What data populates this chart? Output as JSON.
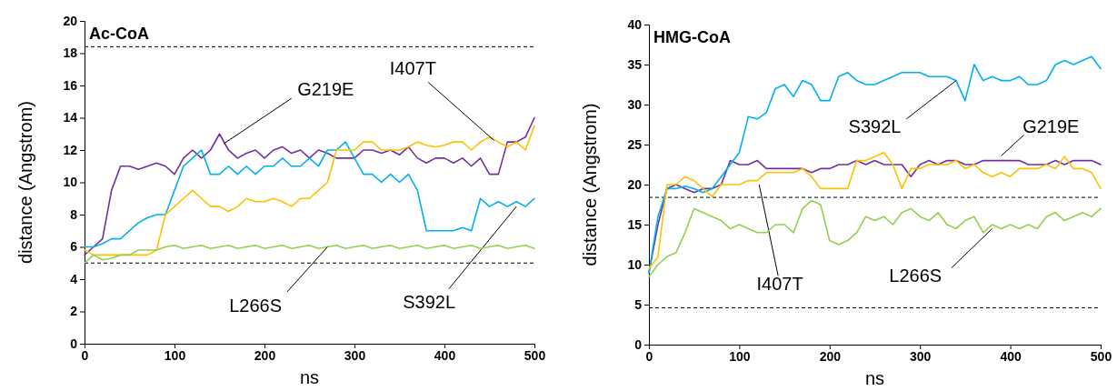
{
  "chart_data": [
    {
      "type": "line",
      "title": "Ac-CoA",
      "xlabel": "ns",
      "ylabel": "distance (Angstrom)",
      "x": [
        0,
        10,
        20,
        30,
        40,
        50,
        60,
        70,
        80,
        90,
        100,
        110,
        120,
        130,
        140,
        150,
        160,
        170,
        180,
        190,
        200,
        210,
        220,
        230,
        240,
        250,
        260,
        270,
        280,
        290,
        300,
        310,
        320,
        330,
        340,
        350,
        360,
        370,
        380,
        390,
        400,
        410,
        420,
        430,
        440,
        450,
        460,
        470,
        480,
        490,
        500
      ],
      "xlim": [
        0,
        500
      ],
      "xticks": [
        0,
        100,
        200,
        300,
        400,
        500
      ],
      "ylim": [
        0,
        20
      ],
      "yticks": [
        0,
        2,
        4,
        6,
        8,
        10,
        12,
        14,
        16,
        18,
        20
      ],
      "grid": false,
      "legend": false,
      "marker": "none",
      "line_style": "solid",
      "ref_lines": [
        {
          "axis": "y",
          "value": 18.4,
          "line_style": "dashed",
          "color": "#000000"
        },
        {
          "axis": "y",
          "value": 5,
          "line_style": "dashed",
          "color": "#000000"
        }
      ],
      "series": [
        {
          "name": "G219E",
          "color": "#7030a0",
          "values": [
            5.5,
            6,
            6.5,
            9.5,
            11,
            11,
            10.8,
            11,
            11.2,
            11,
            10.5,
            11.5,
            12,
            11.5,
            12,
            13,
            12,
            11.5,
            11.8,
            12,
            11.5,
            12,
            12.2,
            11.8,
            12,
            11.5,
            12,
            11.8,
            11.5,
            11.5,
            11.5,
            12,
            12,
            11.8,
            12,
            11.7,
            12.2,
            11.5,
            11.2,
            11.5,
            11.5,
            11.2,
            11.5,
            11,
            11.5,
            10.5,
            10.5,
            12.5,
            12.5,
            12.8,
            14
          ]
        },
        {
          "name": "S392L",
          "color": "#00b0f0",
          "values": [
            6,
            6,
            6.2,
            6.5,
            6.5,
            7,
            7.5,
            7.8,
            8,
            8,
            9.5,
            11,
            11.5,
            12,
            10.5,
            10.5,
            11,
            10.5,
            11,
            10.5,
            11,
            11,
            11.5,
            11,
            11,
            11.5,
            11,
            12,
            12,
            12.5,
            11.5,
            10.5,
            10.5,
            10,
            10.5,
            10,
            10.5,
            9.5,
            7,
            7,
            7,
            7,
            7.2,
            7,
            9,
            8.5,
            8.8,
            8.5,
            8.8,
            8.5,
            9
          ]
        },
        {
          "name": "I407T",
          "color": "#ffc000",
          "values": [
            5.8,
            5.5,
            5.5,
            5.5,
            5.5,
            5.5,
            5.5,
            5.5,
            5.8,
            8,
            8.5,
            9,
            9.5,
            9,
            8.5,
            8.5,
            8.2,
            8.5,
            9,
            8.8,
            8.8,
            9,
            8.8,
            8.5,
            9,
            9,
            9.5,
            10,
            12,
            12,
            12,
            12.5,
            12.5,
            12,
            12,
            12,
            12.2,
            12.5,
            12.3,
            12.2,
            12.3,
            12.5,
            12.5,
            12,
            12.5,
            12.8,
            12.5,
            12.2,
            12.5,
            12,
            13.5
          ]
        },
        {
          "name": "L266S",
          "color": "#92d050",
          "values": [
            5,
            5.5,
            5.2,
            5.3,
            5.5,
            5.5,
            5.8,
            5.8,
            5.8,
            6,
            6.1,
            5.9,
            6,
            6.1,
            5.9,
            6,
            6.1,
            5.9,
            6,
            6.1,
            5.9,
            6,
            6.1,
            5.9,
            6,
            6.1,
            5.9,
            6,
            6.1,
            5.9,
            6,
            6.1,
            5.9,
            6,
            6.1,
            5.9,
            6,
            6.1,
            5.9,
            6,
            6.1,
            5.9,
            6,
            6.1,
            5.9,
            6,
            6.1,
            5.9,
            6,
            6.1,
            5.9
          ]
        }
      ]
    },
    {
      "type": "line",
      "title": "HMG-CoA",
      "xlabel": "ns",
      "ylabel": "distance (Angstrom)",
      "x": [
        0,
        10,
        20,
        30,
        40,
        50,
        60,
        70,
        80,
        90,
        100,
        110,
        120,
        130,
        140,
        150,
        160,
        170,
        180,
        190,
        200,
        210,
        220,
        230,
        240,
        250,
        260,
        270,
        280,
        290,
        300,
        310,
        320,
        330,
        340,
        350,
        360,
        370,
        380,
        390,
        400,
        410,
        420,
        430,
        440,
        450,
        460,
        470,
        480,
        490,
        500
      ],
      "xlim": [
        0,
        500
      ],
      "xticks": [
        0,
        100,
        200,
        300,
        400,
        500
      ],
      "ylim": [
        0,
        40
      ],
      "yticks": [
        0,
        5,
        10,
        15,
        20,
        25,
        30,
        35,
        40
      ],
      "grid": false,
      "legend": false,
      "marker": "none",
      "line_style": "solid",
      "ref_lines": [
        {
          "axis": "y",
          "value": 18.4,
          "line_style": "dashed",
          "color": "#000000"
        },
        {
          "axis": "y",
          "value": 4.6,
          "line_style": "dashed",
          "color": "#000000"
        }
      ],
      "series": [
        {
          "name": "G219E",
          "color": "#7030a0",
          "values": [
            9,
            15,
            19.5,
            20,
            19.5,
            19,
            19.5,
            19.5,
            20,
            23,
            22.5,
            22.5,
            23,
            22,
            22,
            22,
            22,
            22,
            21.5,
            22,
            22,
            22.5,
            22.5,
            23,
            22.5,
            23,
            22.5,
            22.5,
            22.5,
            21,
            22.5,
            23,
            22.5,
            23,
            23,
            22.5,
            22.5,
            23,
            23,
            23,
            23,
            23,
            22.5,
            22.5,
            22.5,
            23,
            22.5,
            23,
            23,
            23,
            22.5
          ]
        },
        {
          "name": "S392L",
          "color": "#00b0f0",
          "values": [
            9,
            16,
            19.5,
            19.5,
            19.8,
            19.5,
            19,
            19.5,
            21,
            22.5,
            24,
            28.5,
            28.2,
            29,
            32,
            32.5,
            31,
            33,
            32.5,
            30.5,
            30.5,
            33.5,
            34,
            33,
            32.5,
            32.5,
            33,
            33.5,
            34,
            34,
            34,
            33.5,
            33.5,
            33.5,
            33,
            30.5,
            35,
            33,
            33.5,
            33,
            33,
            33.5,
            32.5,
            32.5,
            33,
            35,
            35.5,
            35,
            35.5,
            36,
            34.5
          ]
        },
        {
          "name": "I407T",
          "color": "#ffc000",
          "values": [
            9.5,
            11,
            20,
            20,
            21,
            20.5,
            19.5,
            18.5,
            20,
            20,
            20,
            20.5,
            20.5,
            21.5,
            21.5,
            21.5,
            21.5,
            22,
            21,
            19.5,
            19.5,
            19.5,
            19.5,
            23,
            23,
            23.5,
            24,
            22.5,
            19.5,
            22,
            22,
            22.5,
            22.5,
            22.5,
            23,
            22,
            22.5,
            21.5,
            21,
            21.5,
            21,
            22,
            22,
            22,
            22.5,
            22,
            23.5,
            22,
            22,
            21.5,
            19.5
          ]
        },
        {
          "name": "L266S",
          "color": "#92d050",
          "values": [
            8.5,
            10,
            11,
            11.5,
            14,
            17,
            16.5,
            16,
            15.5,
            14.5,
            15,
            14.5,
            14,
            14,
            15,
            15,
            14,
            17,
            18,
            17.5,
            13,
            12.5,
            13,
            14,
            16,
            15.5,
            16,
            15,
            16.5,
            17,
            16,
            15.5,
            16.5,
            15,
            14.5,
            15.5,
            16,
            14,
            15,
            14.5,
            15,
            14.5,
            15,
            14.5,
            16,
            16.5,
            15.5,
            16,
            16.5,
            16,
            17
          ]
        }
      ]
    }
  ]
}
